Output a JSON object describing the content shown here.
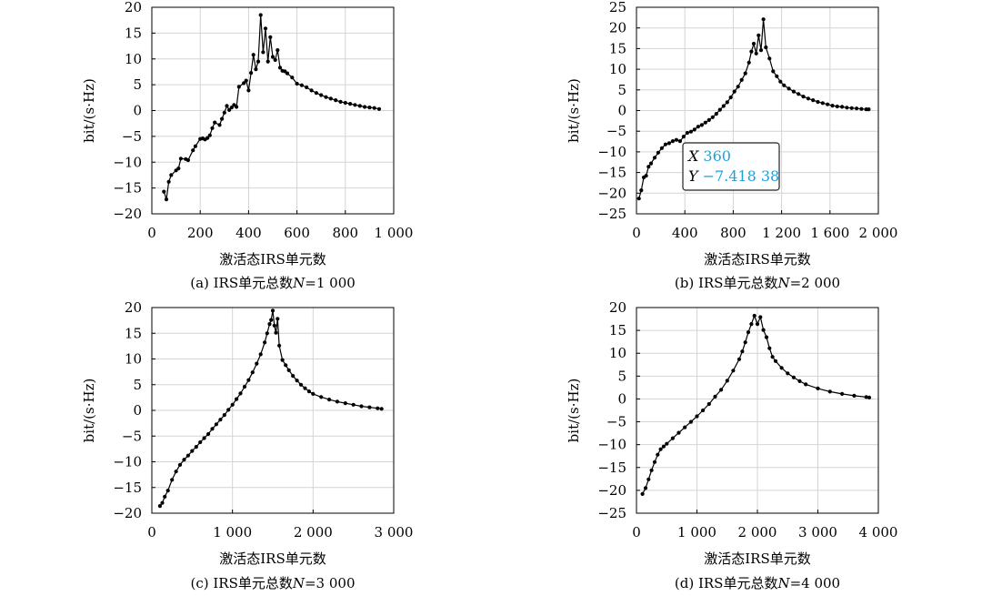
{
  "chart_data": [
    {
      "id": "a",
      "type": "line",
      "caption": "(a) IRS单元总数N=1 000",
      "caption_parts": [
        "(a) IRS单元总数",
        "N",
        "=1 000"
      ],
      "xlabel": "激活态IRS单元数",
      "ylabel": "bit/(s·Hz)",
      "xlim": [
        0,
        1000
      ],
      "ylim": [
        -20,
        20
      ],
      "xticks": [
        0,
        200,
        400,
        600,
        800,
        1000
      ],
      "xtick_labels": [
        "0",
        "200",
        "400",
        "600",
        "800",
        "1 000"
      ],
      "yticks": [
        -20,
        -15,
        -10,
        -5,
        0,
        5,
        10,
        15,
        20
      ],
      "ytick_labels": [
        "−20",
        "−15",
        "−10",
        "−5",
        "0",
        "5",
        "10",
        "15",
        "20"
      ],
      "grid": true,
      "series": [
        {
          "x": [
            50,
            60,
            70,
            80,
            100,
            110,
            120,
            140,
            150,
            170,
            180,
            200,
            210,
            220,
            230,
            240,
            250,
            260,
            280,
            290,
            300,
            310,
            320,
            330,
            340,
            350,
            360,
            380,
            390,
            400,
            410,
            420,
            430,
            440,
            450,
            460,
            470,
            480,
            490,
            500,
            510,
            520,
            530,
            540,
            550,
            560,
            580,
            600,
            620,
            640,
            660,
            680,
            700,
            720,
            740,
            760,
            780,
            800,
            820,
            840,
            860,
            880,
            900,
            920,
            940
          ],
          "y": [
            -15.7,
            -17.2,
            -13.8,
            -12.5,
            -11.6,
            -11.2,
            -9.3,
            -9.4,
            -9.6,
            -7.7,
            -6.9,
            -5.5,
            -5.4,
            -5.6,
            -5.3,
            -4.8,
            -3.4,
            -2.3,
            -2.8,
            -1.6,
            -0.4,
            0.9,
            0.1,
            0.6,
            1.1,
            0.7,
            4.6,
            5.3,
            5.8,
            3.9,
            7.3,
            10.8,
            8.0,
            9.5,
            18.5,
            11.3,
            15.9,
            9.5,
            14.2,
            10.4,
            9.8,
            11.7,
            8.3,
            7.7,
            7.6,
            7.2,
            6.4,
            5.2,
            4.9,
            4.5,
            3.9,
            3.4,
            3.0,
            2.6,
            2.3,
            2.0,
            1.7,
            1.5,
            1.3,
            1.1,
            0.9,
            0.7,
            0.6,
            0.5,
            0.3
          ]
        }
      ]
    },
    {
      "id": "b",
      "type": "line",
      "caption": "(b) IRS单元总数N=2 000",
      "caption_parts": [
        "(b) IRS单元总数",
        "N",
        "=2 000"
      ],
      "xlabel": "激活态IRS单元数",
      "ylabel": "bit/(s·Hz)",
      "xlim": [
        0,
        2000
      ],
      "ylim": [
        -25,
        25
      ],
      "xticks": [
        0,
        400,
        800,
        1200,
        1600,
        2000
      ],
      "xtick_labels": [
        "0",
        "400",
        "800",
        "1 200",
        "1 600",
        "2 000"
      ],
      "yticks": [
        -25,
        -20,
        -15,
        -10,
        -5,
        0,
        5,
        10,
        15,
        20,
        25
      ],
      "ytick_labels": [
        "−25",
        "−20",
        "−15",
        "−10",
        "−5",
        "0",
        "5",
        "10",
        "15",
        "20",
        "25"
      ],
      "grid": true,
      "tooltip": {
        "x_label": "X",
        "x_value": "360",
        "y_label": "Y",
        "y_value": "−7.418 38",
        "point": [
          360,
          -7.41838
        ]
      },
      "series": [
        {
          "x": [
            20,
            40,
            60,
            80,
            100,
            120,
            150,
            180,
            210,
            240,
            270,
            300,
            330,
            360,
            390,
            420,
            450,
            480,
            510,
            540,
            570,
            600,
            630,
            660,
            690,
            720,
            750,
            780,
            810,
            840,
            870,
            900,
            930,
            950,
            970,
            990,
            1010,
            1030,
            1050,
            1070,
            1100,
            1130,
            1160,
            1190,
            1220,
            1260,
            1300,
            1340,
            1380,
            1420,
            1460,
            1500,
            1540,
            1580,
            1620,
            1660,
            1700,
            1740,
            1780,
            1820,
            1860,
            1900,
            1920
          ],
          "y": [
            -21.3,
            -19.3,
            -16.2,
            -15.8,
            -13.6,
            -12.8,
            -11.4,
            -10.2,
            -9.1,
            -8.2,
            -7.9,
            -7.4,
            -7.1,
            -7.4,
            -6.3,
            -5.4,
            -5.1,
            -4.6,
            -3.9,
            -3.5,
            -2.9,
            -2.3,
            -1.6,
            -0.8,
            0.2,
            1.1,
            2.0,
            3.2,
            4.6,
            5.8,
            7.4,
            9.0,
            11.6,
            14.3,
            16.2,
            13.8,
            18.2,
            14.6,
            22.1,
            15.3,
            12.6,
            9.5,
            8.3,
            7.0,
            6.1,
            5.3,
            4.6,
            4.0,
            3.4,
            2.9,
            2.5,
            2.1,
            1.8,
            1.5,
            1.2,
            1.0,
            0.9,
            0.7,
            0.6,
            0.5,
            0.4,
            0.3,
            0.3
          ]
        }
      ]
    },
    {
      "id": "c",
      "type": "line",
      "caption": "(c) IRS单元总数N=3 000",
      "caption_parts": [
        "(c) IRS单元总数",
        "N",
        "=3 000"
      ],
      "xlabel": "激活态IRS单元数",
      "ylabel": "bit/(s·Hz)",
      "xlim": [
        0,
        3000
      ],
      "ylim": [
        -20,
        20
      ],
      "xticks": [
        0,
        1000,
        2000,
        3000
      ],
      "xtick_labels": [
        "0",
        "1 000",
        "2 000",
        "3 000"
      ],
      "yticks": [
        -20,
        -15,
        -10,
        -5,
        0,
        5,
        10,
        15,
        20
      ],
      "ytick_labels": [
        "−20",
        "−15",
        "−10",
        "−5",
        "0",
        "5",
        "10",
        "15",
        "20"
      ],
      "grid": true,
      "series": [
        {
          "x": [
            100,
            130,
            160,
            200,
            250,
            300,
            350,
            400,
            450,
            500,
            550,
            600,
            650,
            700,
            750,
            800,
            850,
            900,
            950,
            1000,
            1050,
            1100,
            1150,
            1200,
            1250,
            1300,
            1350,
            1400,
            1430,
            1460,
            1480,
            1500,
            1520,
            1540,
            1560,
            1580,
            1620,
            1660,
            1700,
            1750,
            1800,
            1850,
            1900,
            1950,
            2000,
            2100,
            2200,
            2300,
            2400,
            2500,
            2600,
            2700,
            2800,
            2850
          ],
          "y": [
            -18.6,
            -18.0,
            -16.8,
            -15.6,
            -13.5,
            -11.9,
            -10.6,
            -9.6,
            -8.8,
            -7.9,
            -7.1,
            -6.2,
            -5.4,
            -4.6,
            -3.6,
            -2.7,
            -1.8,
            -0.9,
            0.1,
            1.1,
            2.2,
            3.3,
            4.6,
            5.9,
            7.4,
            9.1,
            10.9,
            13.2,
            15.0,
            16.8,
            17.6,
            19.4,
            16.5,
            15.1,
            17.8,
            12.6,
            9.8,
            8.8,
            7.8,
            6.7,
            5.8,
            5.0,
            4.3,
            3.7,
            3.2,
            2.6,
            2.1,
            1.7,
            1.4,
            1.1,
            0.8,
            0.6,
            0.4,
            0.3
          ]
        }
      ]
    },
    {
      "id": "d",
      "type": "line",
      "caption": "(d) IRS单元总数N=4 000",
      "caption_parts": [
        "(d) IRS单元总数",
        "N",
        "=4 000"
      ],
      "xlabel": "激活态IRS单元数",
      "ylabel": "bit/(s·Hz)",
      "xlim": [
        0,
        4000
      ],
      "ylim": [
        -25,
        20
      ],
      "xticks": [
        0,
        1000,
        2000,
        3000,
        4000
      ],
      "xtick_labels": [
        "0",
        "1 000",
        "2 000",
        "3 000",
        "4 000"
      ],
      "yticks": [
        -25,
        -20,
        -15,
        -10,
        -5,
        0,
        5,
        10,
        15,
        20
      ],
      "ytick_labels": [
        "−25",
        "−20",
        "−15",
        "−10",
        "−5",
        "0",
        "5",
        "10",
        "15",
        "20"
      ],
      "grid": true,
      "series": [
        {
          "x": [
            100,
            150,
            200,
            250,
            300,
            350,
            400,
            450,
            500,
            600,
            700,
            800,
            900,
            1000,
            1100,
            1200,
            1300,
            1400,
            1500,
            1600,
            1700,
            1750,
            1800,
            1850,
            1900,
            1950,
            2000,
            2050,
            2100,
            2150,
            2200,
            2250,
            2300,
            2400,
            2500,
            2600,
            2700,
            2800,
            3000,
            3200,
            3400,
            3600,
            3800,
            3850
          ],
          "y": [
            -20.8,
            -19.5,
            -17.6,
            -15.6,
            -13.8,
            -12.2,
            -11.0,
            -10.4,
            -9.8,
            -8.6,
            -7.4,
            -6.2,
            -5.0,
            -3.8,
            -2.5,
            -1.1,
            0.5,
            2.0,
            4.0,
            6.2,
            8.7,
            10.4,
            12.4,
            14.6,
            16.4,
            18.2,
            16.4,
            17.9,
            15.1,
            13.5,
            11.1,
            9.2,
            8.3,
            6.8,
            5.6,
            4.7,
            3.9,
            3.2,
            2.3,
            1.6,
            1.1,
            0.7,
            0.4,
            0.3
          ]
        }
      ]
    }
  ]
}
